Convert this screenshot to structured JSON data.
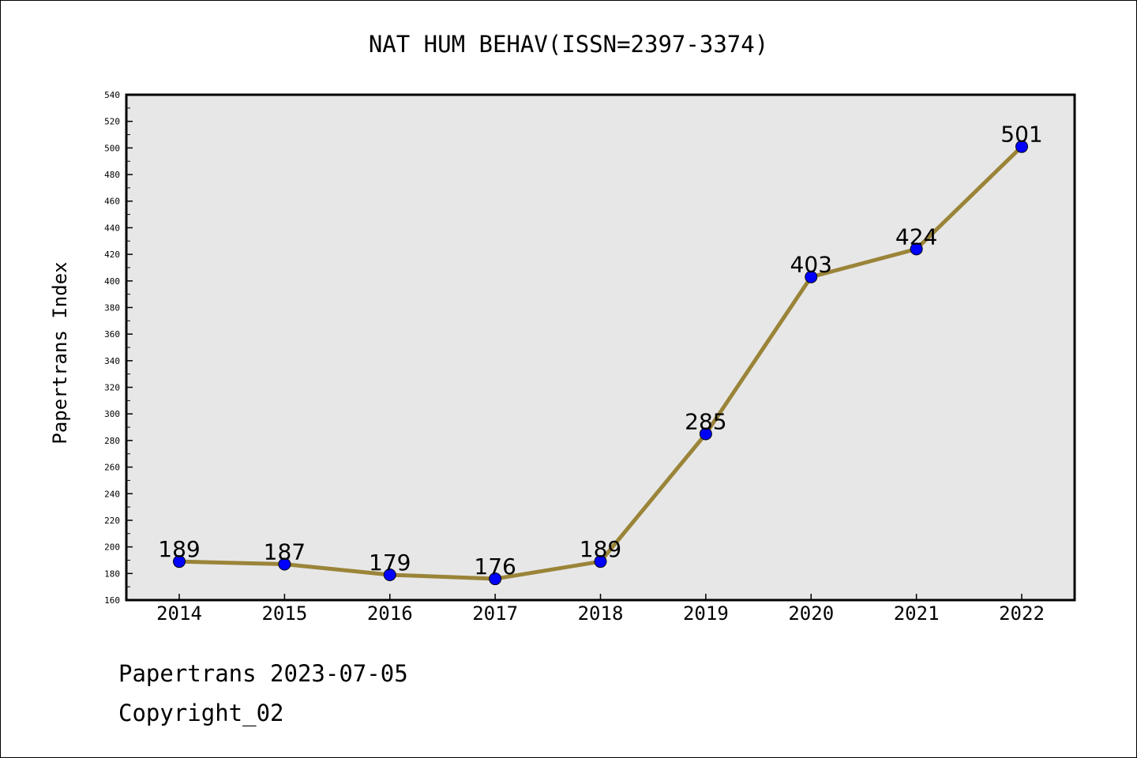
{
  "chart_data": {
    "type": "line",
    "title": "NAT HUM BEHAV(ISSN=2397-3374)",
    "xlabel": "",
    "ylabel": "Papertrans Index",
    "categories": [
      "2014",
      "2015",
      "2016",
      "2017",
      "2018",
      "2019",
      "2020",
      "2021",
      "2022"
    ],
    "series": [
      {
        "values": [
          189,
          187,
          179,
          176,
          189,
          285,
          403,
          424,
          501
        ]
      }
    ],
    "data_labels": [
      "189",
      "187",
      "179",
      "176",
      "189",
      "285",
      "403",
      "424",
      "501"
    ],
    "ylim": [
      160,
      540
    ],
    "yticks": [
      "160",
      "180",
      "200",
      "220",
      "240",
      "260",
      "280",
      "300",
      "320",
      "340",
      "360",
      "380",
      "400",
      "420",
      "440",
      "460",
      "480",
      "500",
      "520",
      "540"
    ],
    "grid": false,
    "colors": {
      "line": "#9a8438",
      "marker": "#0000ff",
      "plot_bg": "#e7e7e7"
    }
  },
  "footer": {
    "date_line": "Papertrans 2023-07-05",
    "copyright": "Copyright_02"
  }
}
